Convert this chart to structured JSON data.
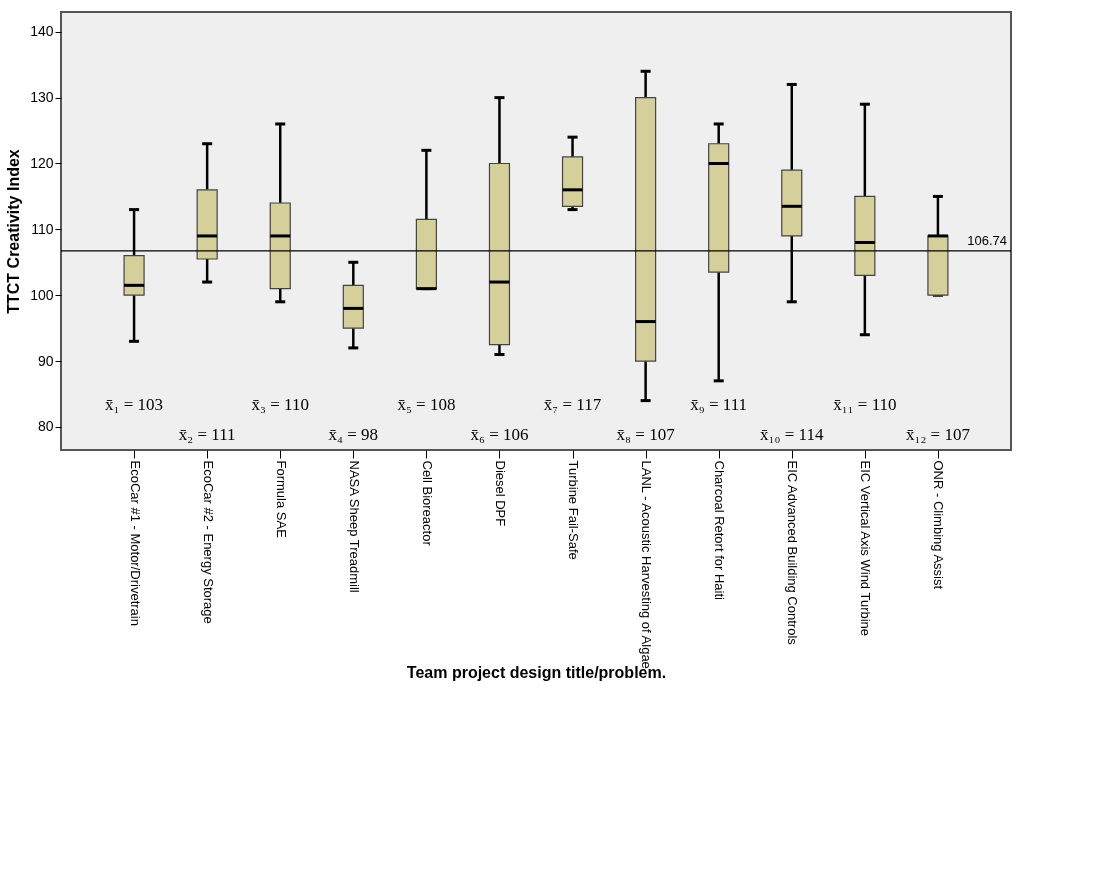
{
  "chart_data": {
    "type": "box",
    "ylabel": "TTCT Creativity Index",
    "xlabel": "Team project design title/problem.",
    "categories": [
      "EcoCar #1 - Motor/Drivetrain",
      "EcoCar #2 - Energy Storage",
      "Formula SAE",
      "NASA Sheep Treadmill",
      "Cell Bioreactor",
      "Diesel DPF",
      "Turbine Fail-Safe",
      "LANL - Acoustic Harvesting of Algae",
      "Charcoal Retort for Haiti",
      "EIC Advanced Building Controls",
      "EIC Vertical Axis Wind Turbine",
      "ONR - Climbing Assist"
    ],
    "color": "#d5d099",
    "boxes": [
      {
        "low": 93,
        "q1": 100,
        "median": 101.5,
        "q3": 106,
        "high": 113
      },
      {
        "low": 102,
        "q1": 105.5,
        "median": 109,
        "q3": 116,
        "high": 123
      },
      {
        "low": 99,
        "q1": 101,
        "median": 109,
        "q3": 114,
        "high": 126
      },
      {
        "low": 92,
        "q1": 95,
        "median": 98,
        "q3": 101.5,
        "high": 105
      },
      {
        "low": 101,
        "q1": 101,
        "median": 101,
        "q3": 111.5,
        "high": 122
      },
      {
        "low": 91,
        "q1": 92.5,
        "median": 102,
        "q3": 120,
        "high": 130
      },
      {
        "low": 113,
        "q1": 113.5,
        "median": 116,
        "q3": 121,
        "high": 124
      },
      {
        "low": 84,
        "q1": 90,
        "median": 96,
        "q3": 130,
        "high": 134
      },
      {
        "low": 87,
        "q1": 103.5,
        "median": 120,
        "q3": 123,
        "high": 126
      },
      {
        "low": 99,
        "q1": 109,
        "median": 113.5,
        "q3": 119,
        "high": 132
      },
      {
        "low": 94,
        "q1": 103,
        "median": 108,
        "q3": 115,
        "high": 129
      },
      {
        "low": 100,
        "q1": 100,
        "median": 109,
        "q3": 109,
        "high": 115
      }
    ],
    "ylim": [
      76.5,
      143
    ],
    "yticks": [
      80,
      90,
      100,
      110,
      120,
      130,
      140
    ],
    "ref_lines": [
      {
        "axis": "y",
        "value": 106.74,
        "label": "106.74"
      }
    ],
    "annotations": [
      "x̄₁ = 103",
      "x̄₂ = 111",
      "x̄₃ = 110",
      "x̄₄ = 98",
      "x̄₅ = 108",
      "x̄₆ = 106",
      "x̄₇ = 117",
      "x̄₈ = 107",
      "x̄₉ = 111",
      "x̄₁₀ = 114",
      "x̄₁₁ = 110",
      "x̄₁₂ = 107"
    ]
  }
}
